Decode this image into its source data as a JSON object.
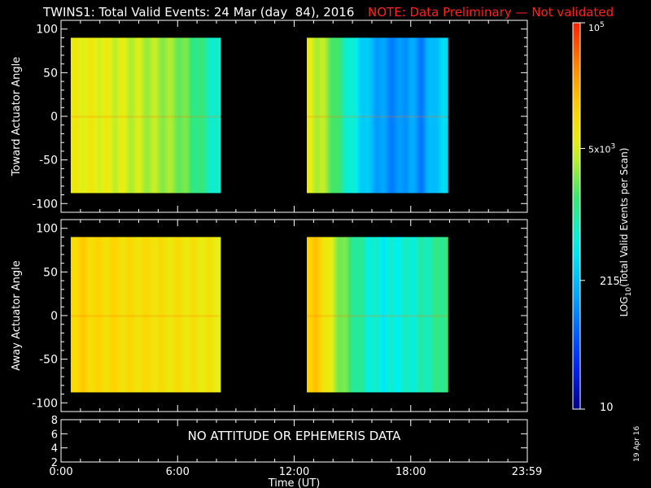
{
  "title": {
    "main": "TWINS1: Total Valid Events: 24 Mar (day  84), 2016",
    "note": "NOTE: Data Preliminary — Not validated"
  },
  "date_stamp": "19 Apr 16",
  "message": "NO ATTITUDE OR EPHEMERIS DATA",
  "colors": {
    "background": "#000000",
    "note": "#ff2020",
    "axes": "#ffffff"
  },
  "chart_data": [
    {
      "type": "heatmap",
      "title": "",
      "ylabel": "Toward Actuator Angle",
      "xlabel": "",
      "ylim": [
        -110,
        110
      ],
      "yticks": [
        100,
        50,
        0,
        -50,
        -100
      ],
      "xlim_hours": [
        0,
        24
      ],
      "data_blocks": [
        {
          "start_hour": 0.5,
          "end_hour": 8.2,
          "angle_range": [
            -88,
            90
          ],
          "log10_values": [
            3.75,
            3.78,
            3.76,
            3.7,
            3.66,
            3.6,
            3.55,
            3.5,
            3.4,
            3.2,
            3.0,
            2.7
          ]
        },
        {
          "start_hour": 12.65,
          "end_hour": 19.9,
          "angle_range": [
            -88,
            90
          ],
          "log10_values": [
            3.7,
            3.6,
            3.3,
            2.9,
            2.6,
            2.3,
            2.1,
            2.0,
            2.2,
            2.0,
            2.4,
            2.5
          ]
        }
      ]
    },
    {
      "type": "heatmap",
      "title": "",
      "ylabel": "Away Actuator Angle",
      "xlabel": "",
      "ylim": [
        -110,
        110
      ],
      "yticks": [
        100,
        50,
        0,
        -50,
        -100
      ],
      "xlim_hours": [
        0,
        24
      ],
      "data_blocks": [
        {
          "start_hour": 0.5,
          "end_hour": 8.2,
          "angle_range": [
            -88,
            90
          ],
          "log10_values": [
            4.05,
            4.1,
            4.0,
            4.02,
            3.98,
            3.95,
            3.96,
            3.9,
            3.92,
            3.88,
            3.85,
            3.8
          ]
        },
        {
          "start_hour": 12.65,
          "end_hour": 19.9,
          "angle_range": [
            -88,
            90
          ],
          "log10_values": [
            4.2,
            4.1,
            3.6,
            3.3,
            3.0,
            2.8,
            2.7,
            2.75,
            2.8,
            2.9,
            3.0,
            3.2
          ]
        }
      ]
    },
    {
      "type": "line",
      "title": "",
      "ylabel": "",
      "xlabel": "Time (UT)",
      "ylim": [
        2,
        8
      ],
      "yticks": [
        8,
        6,
        4,
        2
      ],
      "xticks": [
        "0:00",
        "6:00",
        "12:00",
        "18:00",
        "23:59"
      ],
      "xtick_hours": [
        0,
        6,
        12,
        18,
        23.98
      ]
    }
  ],
  "colorbar": {
    "label": "LOG10(Total Valid Events per Scan)",
    "label_main": "LOG",
    "label_sub": "10",
    "label_rest": "(Total Valid  Events per Scan)",
    "min": 10,
    "max": 100000,
    "ticks": [
      {
        "label": "10",
        "value": 10
      },
      {
        "label": "215",
        "value": 215
      },
      {
        "label": "5x10",
        "sup": "3",
        "value": 5000
      },
      {
        "label": "10",
        "sup": "5",
        "value": 100000
      }
    ]
  }
}
